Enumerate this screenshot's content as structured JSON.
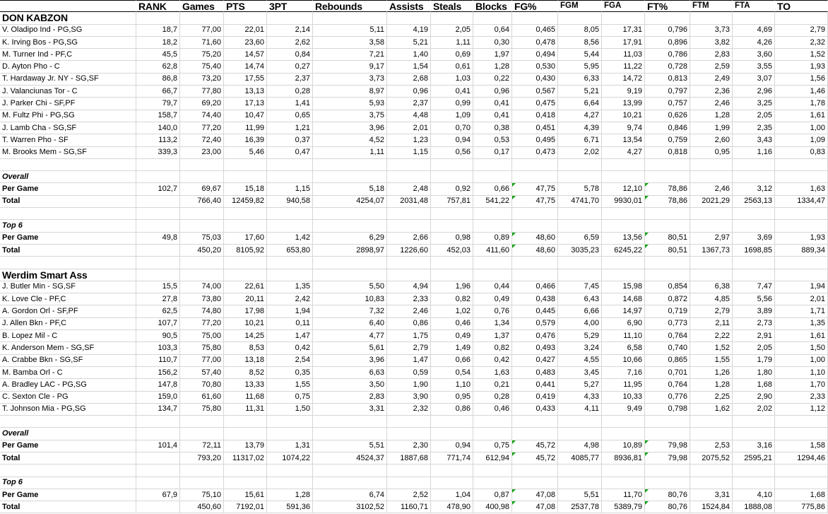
{
  "colors": {
    "background": "#ffffff",
    "text": "#000000",
    "gridline": "#d6d6d6",
    "header_border": "#000000",
    "error_flag_green": "#12a212"
  },
  "labels": {
    "per_game": "Per Game",
    "total": "Total"
  },
  "flagged_columns": [
    8,
    11
  ],
  "columns": [
    {
      "label": "RANK",
      "size": "big"
    },
    {
      "label": "Games",
      "size": "big"
    },
    {
      "label": "PTS",
      "size": "big"
    },
    {
      "label": "3PT",
      "size": "big"
    },
    {
      "label": "Rebounds",
      "size": "big"
    },
    {
      "label": "Assists",
      "size": "big"
    },
    {
      "label": "Steals",
      "size": "big"
    },
    {
      "label": "Blocks",
      "size": "big"
    },
    {
      "label": "FG%",
      "size": "big"
    },
    {
      "label": "FGM",
      "size": "small"
    },
    {
      "label": "FGA",
      "size": "small"
    },
    {
      "label": "FT%",
      "size": "big"
    },
    {
      "label": "FTM",
      "size": "small"
    },
    {
      "label": "FTA",
      "size": "small"
    },
    {
      "label": "TO",
      "size": "big"
    }
  ],
  "teams": [
    {
      "name": "DON KABZON",
      "players": [
        {
          "name": "V. Oladipo Ind - PG,SG",
          "values": [
            "18,7",
            "77,00",
            "22,01",
            "2,14",
            "5,11",
            "4,19",
            "2,05",
            "0,64",
            "0,465",
            "8,05",
            "17,31",
            "0,796",
            "3,73",
            "4,69",
            "2,79"
          ]
        },
        {
          "name": "K. Irving Bos - PG,SG",
          "values": [
            "18,2",
            "71,60",
            "23,60",
            "2,62",
            "3,58",
            "5,21",
            "1,11",
            "0,30",
            "0,478",
            "8,56",
            "17,91",
            "0,896",
            "3,82",
            "4,26",
            "2,32"
          ]
        },
        {
          "name": "M. Turner Ind - PF,C",
          "values": [
            "45,5",
            "75,20",
            "14,57",
            "0,84",
            "7,21",
            "1,40",
            "0,69",
            "1,97",
            "0,494",
            "5,44",
            "11,03",
            "0,786",
            "2,83",
            "3,60",
            "1,52"
          ]
        },
        {
          "name": "D. Ayton Pho - C",
          "values": [
            "62,8",
            "75,40",
            "14,74",
            "0,27",
            "9,17",
            "1,54",
            "0,61",
            "1,28",
            "0,530",
            "5,95",
            "11,22",
            "0,728",
            "2,59",
            "3,55",
            "1,93"
          ]
        },
        {
          "name": "T. Hardaway Jr. NY - SG,SF",
          "values": [
            "86,8",
            "73,20",
            "17,55",
            "2,37",
            "3,73",
            "2,68",
            "1,03",
            "0,22",
            "0,430",
            "6,33",
            "14,72",
            "0,813",
            "2,49",
            "3,07",
            "1,56"
          ]
        },
        {
          "name": "J. Valanciunas Tor - C",
          "values": [
            "66,7",
            "77,80",
            "13,13",
            "0,28",
            "8,97",
            "0,96",
            "0,41",
            "0,96",
            "0,567",
            "5,21",
            "9,19",
            "0,797",
            "2,36",
            "2,96",
            "1,46"
          ]
        },
        {
          "name": "J. Parker Chi - SF,PF",
          "values": [
            "79,7",
            "69,20",
            "17,13",
            "1,41",
            "5,93",
            "2,37",
            "0,99",
            "0,41",
            "0,475",
            "6,64",
            "13,99",
            "0,757",
            "2,46",
            "3,25",
            "1,78"
          ]
        },
        {
          "name": "M. Fultz Phi - PG,SG",
          "values": [
            "158,7",
            "74,40",
            "10,47",
            "0,65",
            "3,75",
            "4,48",
            "1,09",
            "0,41",
            "0,418",
            "4,27",
            "10,21",
            "0,626",
            "1,28",
            "2,05",
            "1,61"
          ]
        },
        {
          "name": "J. Lamb Cha - SG,SF",
          "values": [
            "140,0",
            "77,20",
            "11,99",
            "1,21",
            "3,96",
            "2,01",
            "0,70",
            "0,38",
            "0,451",
            "4,39",
            "9,74",
            "0,846",
            "1,99",
            "2,35",
            "1,00"
          ]
        },
        {
          "name": "T. Warren Pho - SF",
          "values": [
            "113,2",
            "72,40",
            "16,39",
            "0,37",
            "4,52",
            "1,23",
            "0,94",
            "0,53",
            "0,495",
            "6,71",
            "13,54",
            "0,759",
            "2,60",
            "3,43",
            "1,09"
          ]
        },
        {
          "name": "M. Brooks Mem - SG,SF",
          "values": [
            "339,3",
            "23,00",
            "5,46",
            "0,47",
            "1,11",
            "1,15",
            "0,56",
            "0,17",
            "0,473",
            "2,02",
            "4,27",
            "0,818",
            "0,95",
            "1,16",
            "0,83"
          ]
        }
      ],
      "summaries": [
        {
          "label": "Overall",
          "per_game": [
            "102,7",
            "69,67",
            "15,18",
            "1,15",
            "5,18",
            "2,48",
            "0,92",
            "0,66",
            "47,75",
            "5,78",
            "12,10",
            "78,86",
            "2,46",
            "3,12",
            "1,63"
          ],
          "total": [
            "",
            "766,40",
            "12459,82",
            "940,58",
            "4254,07",
            "2031,48",
            "757,81",
            "541,22",
            "47,75",
            "4741,70",
            "9930,01",
            "78,86",
            "2021,29",
            "2563,13",
            "1334,47"
          ]
        },
        {
          "label": "Top 6",
          "per_game": [
            "49,8",
            "75,03",
            "17,60",
            "1,42",
            "6,29",
            "2,66",
            "0,98",
            "0,89",
            "48,60",
            "6,59",
            "13,56",
            "80,51",
            "2,97",
            "3,69",
            "1,93"
          ],
          "total": [
            "",
            "450,20",
            "8105,92",
            "653,80",
            "2898,97",
            "1226,60",
            "452,03",
            "411,60",
            "48,60",
            "3035,23",
            "6245,22",
            "80,51",
            "1367,73",
            "1698,85",
            "889,34"
          ]
        }
      ]
    },
    {
      "name": "Werdim Smart Ass",
      "players": [
        {
          "name": "J. Butler Min - SG,SF",
          "values": [
            "15,5",
            "74,00",
            "22,61",
            "1,35",
            "5,50",
            "4,94",
            "1,96",
            "0,44",
            "0,466",
            "7,45",
            "15,98",
            "0,854",
            "6,38",
            "7,47",
            "1,94"
          ]
        },
        {
          "name": "K. Love Cle - PF,C",
          "values": [
            "27,8",
            "73,80",
            "20,11",
            "2,42",
            "10,83",
            "2,33",
            "0,82",
            "0,49",
            "0,438",
            "6,43",
            "14,68",
            "0,872",
            "4,85",
            "5,56",
            "2,01"
          ]
        },
        {
          "name": "A. Gordon Orl - SF,PF",
          "values": [
            "62,5",
            "74,80",
            "17,98",
            "1,94",
            "7,32",
            "2,46",
            "1,02",
            "0,76",
            "0,445",
            "6,66",
            "14,97",
            "0,719",
            "2,79",
            "3,89",
            "1,71"
          ]
        },
        {
          "name": "J. Allen Bkn - PF,C",
          "values": [
            "107,7",
            "77,20",
            "10,21",
            "0,11",
            "6,40",
            "0,86",
            "0,46",
            "1,34",
            "0,579",
            "4,00",
            "6,90",
            "0,773",
            "2,11",
            "2,73",
            "1,35"
          ]
        },
        {
          "name": "B. Lopez Mil - C",
          "values": [
            "90,5",
            "75,00",
            "14,25",
            "1,47",
            "4,77",
            "1,75",
            "0,49",
            "1,37",
            "0,476",
            "5,29",
            "11,10",
            "0,764",
            "2,22",
            "2,91",
            "1,61"
          ]
        },
        {
          "name": "K. Anderson Mem - SG,SF",
          "values": [
            "103,3",
            "75,80",
            "8,53",
            "0,42",
            "5,61",
            "2,79",
            "1,49",
            "0,82",
            "0,493",
            "3,24",
            "6,58",
            "0,740",
            "1,52",
            "2,05",
            "1,50"
          ]
        },
        {
          "name": "A. Crabbe Bkn - SG,SF",
          "values": [
            "110,7",
            "77,00",
            "13,18",
            "2,54",
            "3,96",
            "1,47",
            "0,66",
            "0,42",
            "0,427",
            "4,55",
            "10,66",
            "0,865",
            "1,55",
            "1,79",
            "1,00"
          ]
        },
        {
          "name": "M. Bamba Orl - C",
          "values": [
            "156,2",
            "57,40",
            "8,52",
            "0,35",
            "6,63",
            "0,59",
            "0,54",
            "1,63",
            "0,483",
            "3,45",
            "7,16",
            "0,701",
            "1,26",
            "1,80",
            "1,10"
          ]
        },
        {
          "name": "A. Bradley LAC - PG,SG",
          "values": [
            "147,8",
            "70,80",
            "13,33",
            "1,55",
            "3,50",
            "1,90",
            "1,10",
            "0,21",
            "0,441",
            "5,27",
            "11,95",
            "0,764",
            "1,28",
            "1,68",
            "1,70"
          ]
        },
        {
          "name": "C. Sexton Cle - PG",
          "values": [
            "159,0",
            "61,60",
            "11,68",
            "0,75",
            "2,83",
            "3,90",
            "0,95",
            "0,28",
            "0,419",
            "4,33",
            "10,33",
            "0,776",
            "2,25",
            "2,90",
            "2,33"
          ]
        },
        {
          "name": "T. Johnson Mia - PG,SG",
          "values": [
            "134,7",
            "75,80",
            "11,31",
            "1,50",
            "3,31",
            "2,32",
            "0,86",
            "0,46",
            "0,433",
            "4,11",
            "9,49",
            "0,798",
            "1,62",
            "2,02",
            "1,12"
          ]
        }
      ],
      "summaries": [
        {
          "label": "Overall",
          "per_game": [
            "101,4",
            "72,11",
            "13,79",
            "1,31",
            "5,51",
            "2,30",
            "0,94",
            "0,75",
            "45,72",
            "4,98",
            "10,89",
            "79,98",
            "2,53",
            "3,16",
            "1,58"
          ],
          "total": [
            "",
            "793,20",
            "11317,02",
            "1074,22",
            "4524,37",
            "1887,68",
            "771,74",
            "612,94",
            "45,72",
            "4085,77",
            "8936,81",
            "79,98",
            "2075,52",
            "2595,21",
            "1294,46"
          ]
        },
        {
          "label": "Top 6",
          "per_game": [
            "67,9",
            "75,10",
            "15,61",
            "1,28",
            "6,74",
            "2,52",
            "1,04",
            "0,87",
            "47,08",
            "5,51",
            "11,70",
            "80,76",
            "3,31",
            "4,10",
            "1,68"
          ],
          "total": [
            "",
            "450,60",
            "7192,01",
            "591,36",
            "3102,52",
            "1160,71",
            "478,90",
            "400,98",
            "47,08",
            "2537,78",
            "5389,79",
            "80,76",
            "1524,84",
            "1888,08",
            "775,86"
          ]
        }
      ]
    }
  ]
}
